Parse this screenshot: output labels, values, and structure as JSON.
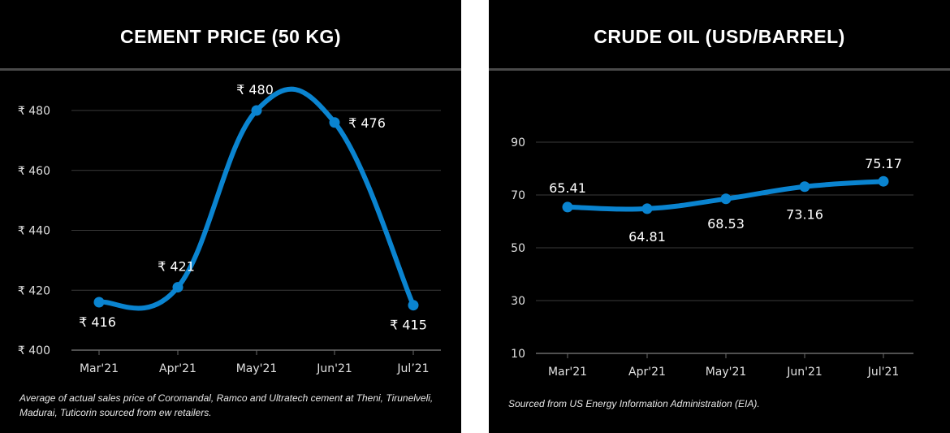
{
  "chart_data": [
    {
      "type": "line",
      "title": "CEMENT PRICE (50 KG)",
      "categories": [
        "Mar'21",
        "Apr'21",
        "May'21",
        "Jun'21",
        "Jul’21"
      ],
      "values": [
        416,
        421,
        480,
        476,
        415
      ],
      "data_labels": [
        "₹ 416",
        "₹ 421",
        "₹ 480",
        "₹ 476",
        "₹ 415"
      ],
      "y_ticks": [
        400,
        420,
        440,
        460,
        480
      ],
      "y_tick_labels": [
        "₹ 400",
        "₹ 420",
        "₹ 440",
        "₹ 460",
        "₹ 480"
      ],
      "ylim": [
        400,
        480
      ],
      "grid": true,
      "smooth": true,
      "line_color": "#0a84d0",
      "note": "Average of actual sales price of Coromandal, Ramco and Ultratech cement at Theni, Tirunelveli, Madurai, Tuticorin sourced from ew retailers."
    },
    {
      "type": "line",
      "title": "CRUDE OIL (USD/BARREL)",
      "categories": [
        "Mar'21",
        "Apr'21",
        "May'21",
        "Jun'21",
        "Jul'21"
      ],
      "values": [
        65.41,
        64.81,
        68.53,
        73.16,
        75.17
      ],
      "data_labels": [
        "65.41",
        "64.81",
        "68.53",
        "73.16",
        "75.17"
      ],
      "y_ticks": [
        10,
        30,
        50,
        70,
        90
      ],
      "y_tick_labels": [
        "10",
        "30",
        "50",
        "70",
        "90"
      ],
      "ylim": [
        10,
        90
      ],
      "grid": true,
      "smooth": true,
      "line_color": "#0a84d0",
      "note": "Sourced from US Energy Information Administration (EIA)."
    }
  ]
}
